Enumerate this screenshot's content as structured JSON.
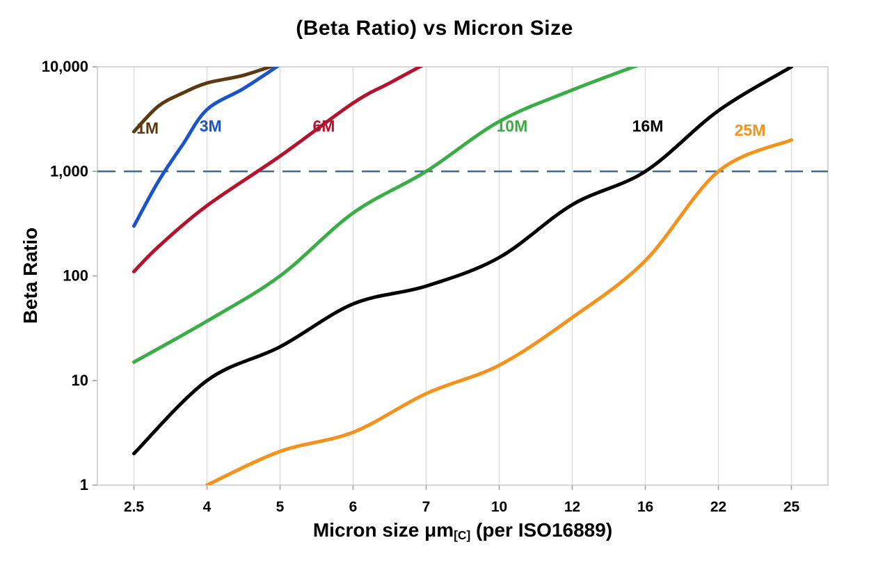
{
  "chart_data": {
    "type": "line",
    "title": "(Beta Ratio) vs Micron Size",
    "ylabel": "Beta Ratio",
    "xlabel_parts": {
      "main": "Micron size μm",
      "sub": "[C]",
      "rest": " (per ISO16889)"
    },
    "x_scale": "category",
    "categories": [
      2.5,
      4,
      5,
      6,
      7,
      10,
      12,
      16,
      22,
      25
    ],
    "x_tick_labels": [
      "2.5",
      "4",
      "5",
      "6",
      "7",
      "10",
      "12",
      "16",
      "22",
      "25"
    ],
    "y_scale": "log",
    "ylim": [
      1,
      10000
    ],
    "y_ticks": [
      {
        "value": 1,
        "label": "1"
      },
      {
        "value": 10,
        "label": "10"
      },
      {
        "value": 100,
        "label": "100"
      },
      {
        "value": 1000,
        "label": "1,000"
      },
      {
        "value": 10000,
        "label": "10,000"
      }
    ],
    "grid": {
      "vertical": true,
      "color": "#dcdcdc",
      "border_color": "#c9c9c9"
    },
    "threshold_line": {
      "y": 1000,
      "style": "dashed",
      "color": "#3a6b9c"
    },
    "series": [
      {
        "name": "1M",
        "color": "#5b3a10",
        "label_at": {
          "x": 2.78,
          "y": 2300
        },
        "points": [
          [
            2.5,
            2400
          ],
          [
            3,
            4200
          ],
          [
            3.5,
            5600
          ],
          [
            4,
            7000
          ],
          [
            4.5,
            8300
          ],
          [
            5,
            10800
          ]
        ]
      },
      {
        "name": "3M",
        "color": "#1a54c8",
        "label_at": {
          "x": 4.05,
          "y": 2400
        },
        "points": [
          [
            2.5,
            300
          ],
          [
            3,
            800
          ],
          [
            3.5,
            1800
          ],
          [
            4,
            3900
          ],
          [
            4.5,
            6200
          ],
          [
            5,
            10500
          ]
        ]
      },
      {
        "name": "6M",
        "color": "#b5122d",
        "label_at": {
          "x": 5.6,
          "y": 2400
        },
        "points": [
          [
            2.5,
            110
          ],
          [
            3,
            190
          ],
          [
            4,
            470
          ],
          [
            5,
            1400
          ],
          [
            6,
            4500
          ],
          [
            6.5,
            7000
          ],
          [
            7,
            10800
          ]
        ]
      },
      {
        "name": "10M",
        "color": "#3aad46",
        "label_at": {
          "x": 10.35,
          "y": 2400
        },
        "points": [
          [
            2.5,
            15
          ],
          [
            4,
            37
          ],
          [
            5,
            100
          ],
          [
            6,
            400
          ],
          [
            7,
            1000
          ],
          [
            10,
            3000
          ],
          [
            12,
            6000
          ],
          [
            16,
            11000
          ]
        ]
      },
      {
        "name": "16M",
        "color": "#000000",
        "label_at": {
          "x": 16.2,
          "y": 2400
        },
        "points": [
          [
            2.5,
            2
          ],
          [
            4,
            10
          ],
          [
            5,
            21
          ],
          [
            6,
            54
          ],
          [
            7,
            80
          ],
          [
            10,
            150
          ],
          [
            12,
            480
          ],
          [
            16,
            1000
          ],
          [
            22,
            3800
          ],
          [
            25,
            10000
          ]
        ]
      },
      {
        "name": "25M",
        "color": "#f5921d",
        "label_at": {
          "x": 23.3,
          "y": 2200
        },
        "points": [
          [
            4,
            1
          ],
          [
            5,
            2.1
          ],
          [
            6,
            3.2
          ],
          [
            7,
            7.5
          ],
          [
            10,
            14
          ],
          [
            12,
            40
          ],
          [
            16,
            140
          ],
          [
            22,
            1000
          ],
          [
            25,
            2000
          ]
        ]
      }
    ]
  }
}
